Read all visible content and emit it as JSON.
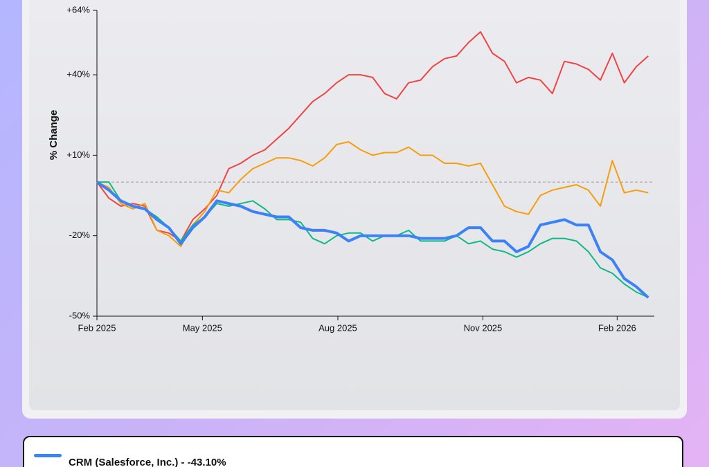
{
  "chart_data": {
    "type": "line",
    "y_label": "% Change",
    "ylim": [
      -50,
      64
    ],
    "yticks": [
      {
        "value": 64,
        "label": "+64%"
      },
      {
        "value": 40,
        "label": "+40%"
      },
      {
        "value": 10,
        "label": "+10%"
      },
      {
        "value": -20,
        "label": "-20%"
      },
      {
        "value": -50,
        "label": "-50%"
      }
    ],
    "xlim": [
      0,
      46.5
    ],
    "xticks": [
      {
        "value": 0,
        "label": "Feb 2025"
      },
      {
        "value": 8.8,
        "label": "May 2025"
      },
      {
        "value": 20.1,
        "label": "Aug 2025"
      },
      {
        "value": 32.2,
        "label": "Nov 2025"
      },
      {
        "value": 43.4,
        "label": "Feb 2026"
      }
    ],
    "series": [
      {
        "color": "#ef4444",
        "values": [
          0,
          -6,
          -9,
          -8,
          -9,
          -18,
          -19,
          -22,
          -14,
          -10,
          -5,
          5,
          7,
          10,
          12,
          16,
          20,
          25,
          30,
          33,
          37,
          40,
          40,
          39,
          33,
          31,
          37,
          38,
          43,
          46,
          47,
          52,
          56,
          48,
          45,
          37,
          39,
          38,
          33,
          45,
          44,
          42,
          38,
          48,
          37,
          43,
          47
        ]
      },
      {
        "color": "#f59e0b",
        "values": [
          0,
          -2,
          -8,
          -10,
          -8,
          -18,
          -20,
          -24,
          -16,
          -11,
          -3,
          -4,
          1,
          5,
          7,
          9,
          9,
          8,
          6,
          9,
          14,
          15,
          12,
          10,
          11,
          11,
          13,
          10,
          10,
          7,
          7,
          6,
          7,
          -1,
          -9,
          -11,
          -12,
          -5,
          -3,
          -2,
          -1,
          -3,
          -9,
          8,
          -4,
          -3,
          -4
        ]
      },
      {
        "color": "#10b981",
        "values": [
          0,
          0,
          -7,
          -9,
          -10,
          -13,
          -17,
          -22,
          -16,
          -13,
          -8,
          -9,
          -8,
          -7,
          -10,
          -14,
          -14,
          -15,
          -21,
          -23,
          -20,
          -19,
          -19,
          -22,
          -20,
          -20,
          -18,
          -22,
          -22,
          -22,
          -20,
          -23,
          -22,
          -25,
          -26,
          -28,
          -26,
          -23,
          -21,
          -21,
          -22,
          -26,
          -32,
          -34,
          -38,
          -41,
          -43
        ]
      },
      {
        "name": "CRM (Salesforce, Inc.) - -43.10%",
        "color": "#3b82f6",
        "width": 4,
        "values": [
          0,
          -3,
          -7,
          -9,
          -10,
          -14,
          -17,
          -23,
          -17,
          -13,
          -7,
          -8,
          -9,
          -11,
          -12,
          -13,
          -13,
          -17,
          -18,
          -18,
          -19,
          -22,
          -20,
          -20,
          -20,
          -20,
          -20,
          -21,
          -21,
          -21,
          -20,
          -17,
          -17,
          -22,
          -22,
          -26,
          -24,
          -16,
          -15,
          -14,
          -16,
          -16,
          -26,
          -29,
          -36,
          -39,
          -43.1
        ]
      }
    ]
  }
}
